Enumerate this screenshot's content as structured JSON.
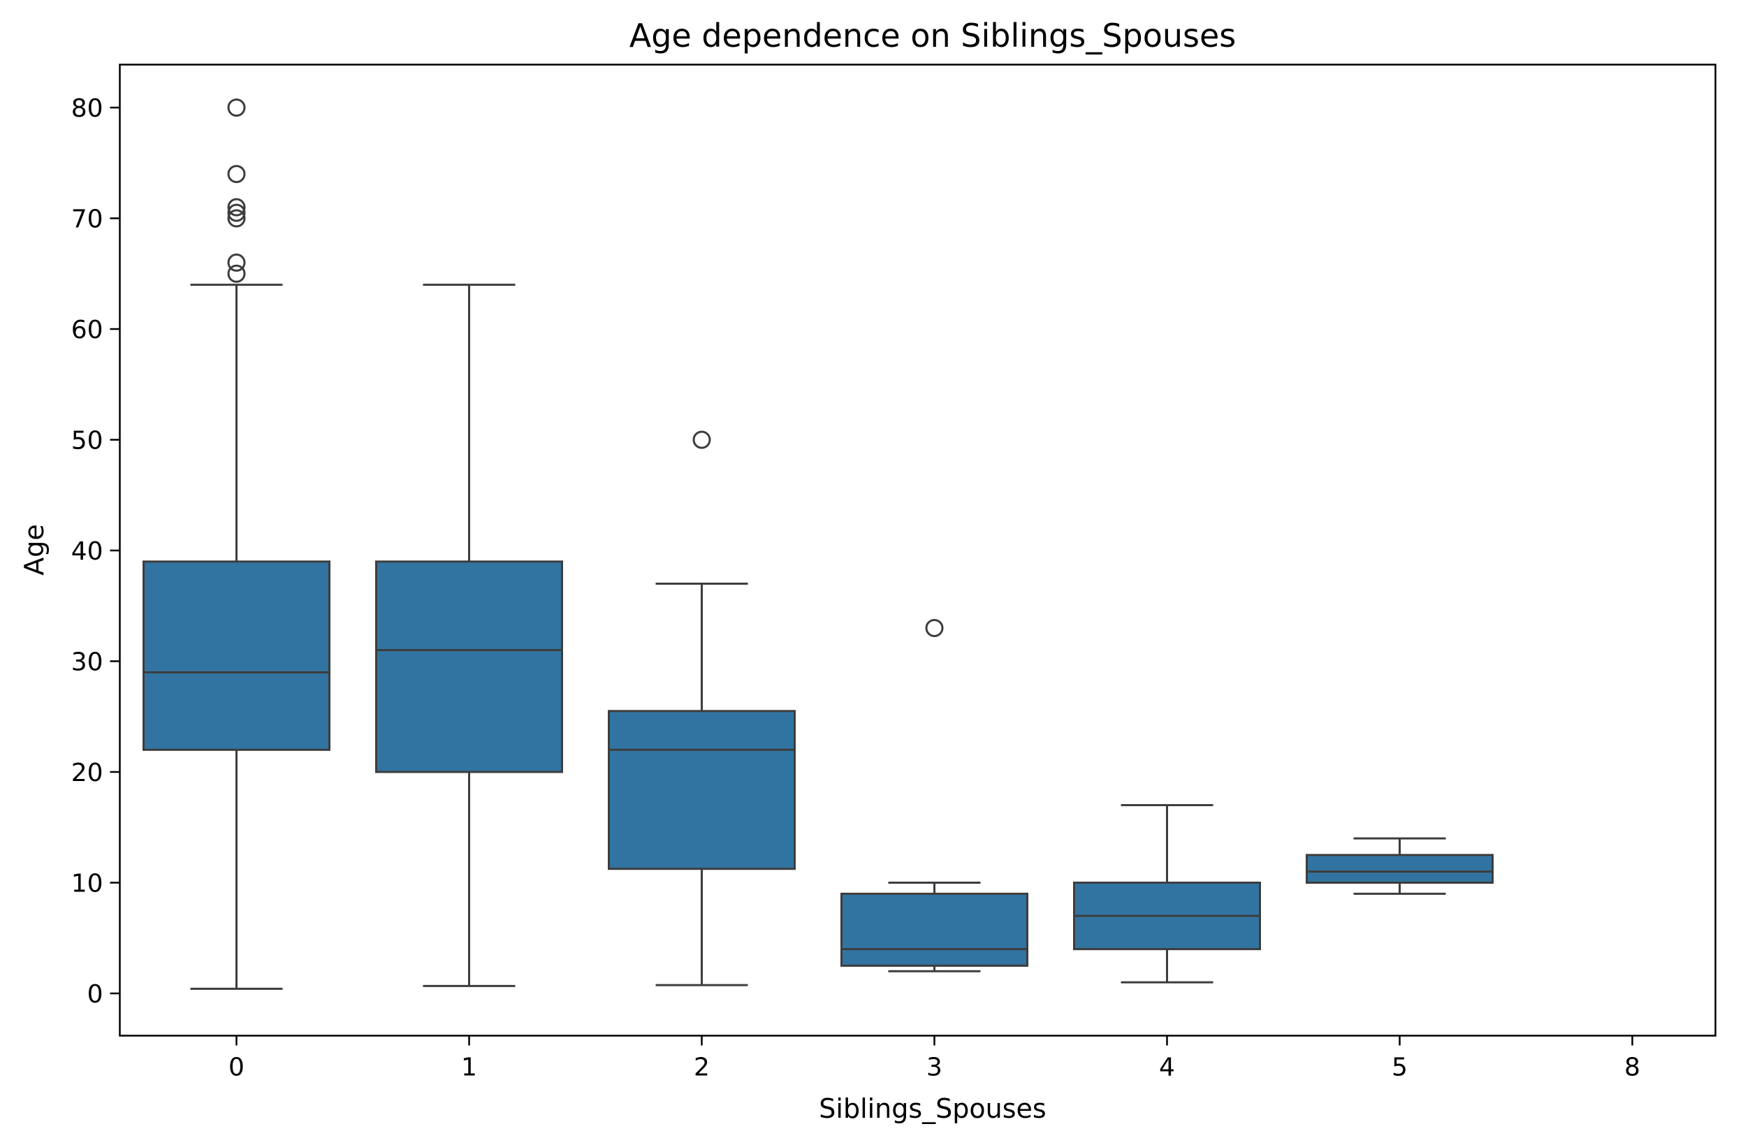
{
  "chart_data": {
    "type": "box",
    "title": "Age dependence on Siblings_Spouses",
    "xlabel": "Siblings_Spouses",
    "ylabel": "Age",
    "ylim": [
      -3.5,
      84
    ],
    "yticks": [
      0,
      10,
      20,
      30,
      40,
      50,
      60,
      70,
      80
    ],
    "grid": false,
    "colors": {
      "box": "#3274a1",
      "line": "#3d3d3d"
    },
    "categories": [
      "0",
      "1",
      "2",
      "3",
      "4",
      "5",
      "8"
    ],
    "boxes": [
      {
        "category": "0",
        "whisker_low": 0.42,
        "q1": 22,
        "median": 29,
        "q3": 39,
        "whisker_high": 64,
        "outliers": [
          65,
          66,
          70,
          70.5,
          71,
          74,
          80
        ]
      },
      {
        "category": "1",
        "whisker_low": 0.67,
        "q1": 20,
        "median": 31,
        "q3": 39,
        "whisker_high": 64,
        "outliers": []
      },
      {
        "category": "2",
        "whisker_low": 0.75,
        "q1": 11.25,
        "median": 22,
        "q3": 25.5,
        "whisker_high": 37,
        "outliers": [
          50
        ]
      },
      {
        "category": "3",
        "whisker_low": 2,
        "q1": 2.5,
        "median": 4,
        "q3": 9,
        "whisker_high": 10,
        "outliers": [
          33
        ]
      },
      {
        "category": "4",
        "whisker_low": 1,
        "q1": 4,
        "median": 7,
        "q3": 10,
        "whisker_high": 17,
        "outliers": []
      },
      {
        "category": "5",
        "whisker_low": 9,
        "q1": 10,
        "median": 11,
        "q3": 12.5,
        "whisker_high": 14,
        "outliers": []
      },
      {
        "category": "8",
        "empty": true
      }
    ]
  }
}
